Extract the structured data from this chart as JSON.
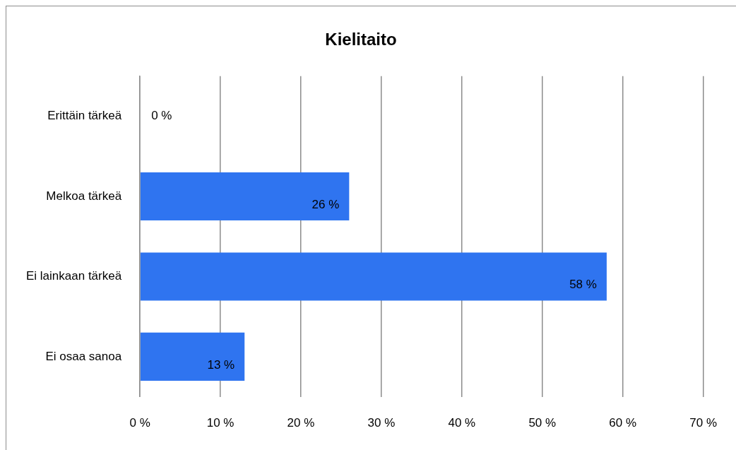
{
  "chart_data": {
    "type": "bar",
    "orientation": "horizontal",
    "title": "Kielitaito",
    "categories": [
      "Erittäin tärkeä",
      "Melkoa tärkeä",
      "Ei lainkaan tärkeä",
      "Ei osaa sanoa"
    ],
    "values": [
      0,
      26,
      58,
      13
    ],
    "color": "#2f74f0",
    "value_labels": [
      "0 %",
      "26 %",
      "58 %",
      "13 %"
    ],
    "xlim": [
      0,
      70
    ],
    "xticks": [
      {
        "value": 0,
        "label": "0 %"
      },
      {
        "value": 10,
        "label": "10 %"
      },
      {
        "value": 20,
        "label": "20 %"
      },
      {
        "value": 30,
        "label": "30 %"
      },
      {
        "value": 40,
        "label": "40 %"
      },
      {
        "value": 50,
        "label": "50 %"
      },
      {
        "value": 60,
        "label": "60 %"
      },
      {
        "value": 70,
        "label": "70 %"
      }
    ],
    "grid": "x",
    "legend": false
  }
}
